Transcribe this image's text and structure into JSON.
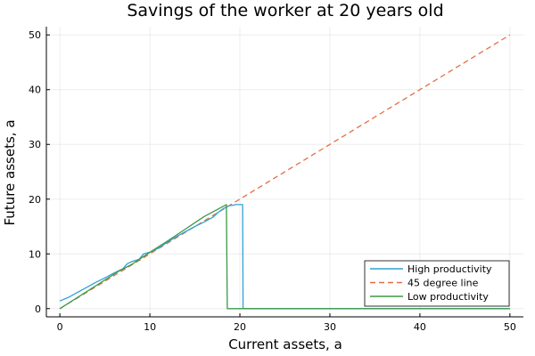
{
  "chart_data": {
    "type": "line",
    "title": "Savings of the worker at 20 years old",
    "xlabel": "Current assets, a",
    "ylabel": "Future assets, a",
    "xlim": [
      -1.5,
      51.5
    ],
    "ylim": [
      -1.5,
      51.5
    ],
    "xticks": [
      0,
      10,
      20,
      30,
      40,
      50
    ],
    "yticks": [
      0,
      10,
      20,
      30,
      40,
      50
    ],
    "grid": true,
    "legend_position": "bottom-right",
    "series": [
      {
        "name": "High productivity",
        "color": "#2ea2d8",
        "dash": "solid",
        "points": [
          [
            0,
            1.4
          ],
          [
            1,
            2.1
          ],
          [
            2,
            3.0
          ],
          [
            3,
            3.9
          ],
          [
            4,
            4.8
          ],
          [
            5,
            5.6
          ],
          [
            6,
            6.5
          ],
          [
            7,
            7.3
          ],
          [
            7.5,
            8.2
          ],
          [
            8,
            8.6
          ],
          [
            8.8,
            9.0
          ],
          [
            9.3,
            10.0
          ],
          [
            10,
            10.3
          ],
          [
            11,
            11.1
          ],
          [
            12,
            12.2
          ],
          [
            13,
            13.2
          ],
          [
            14,
            14.1
          ],
          [
            15,
            15.0
          ],
          [
            16,
            15.8
          ],
          [
            17,
            16.7
          ],
          [
            17.6,
            17.6
          ],
          [
            18.2,
            18.3
          ],
          [
            18.8,
            18.8
          ],
          [
            19.3,
            18.9
          ],
          [
            19.5,
            19.0
          ],
          [
            20.3,
            19.0
          ],
          [
            20.35,
            0
          ],
          [
            50,
            0
          ]
        ]
      },
      {
        "name": "45 degree line",
        "color": "#e26f46",
        "dash": "dashed",
        "points": [
          [
            0,
            0
          ],
          [
            50,
            50
          ]
        ]
      },
      {
        "name": "Low productivity",
        "color": "#3a9a48",
        "dash": "solid",
        "points": [
          [
            0,
            0
          ],
          [
            6.5,
            6.8
          ],
          [
            8,
            8.1
          ],
          [
            9,
            9.2
          ],
          [
            10,
            10.3
          ],
          [
            12,
            12.4
          ],
          [
            14,
            14.6
          ],
          [
            16,
            16.8
          ],
          [
            18.5,
            19.0
          ],
          [
            18.6,
            0
          ],
          [
            50,
            0
          ]
        ]
      }
    ]
  }
}
